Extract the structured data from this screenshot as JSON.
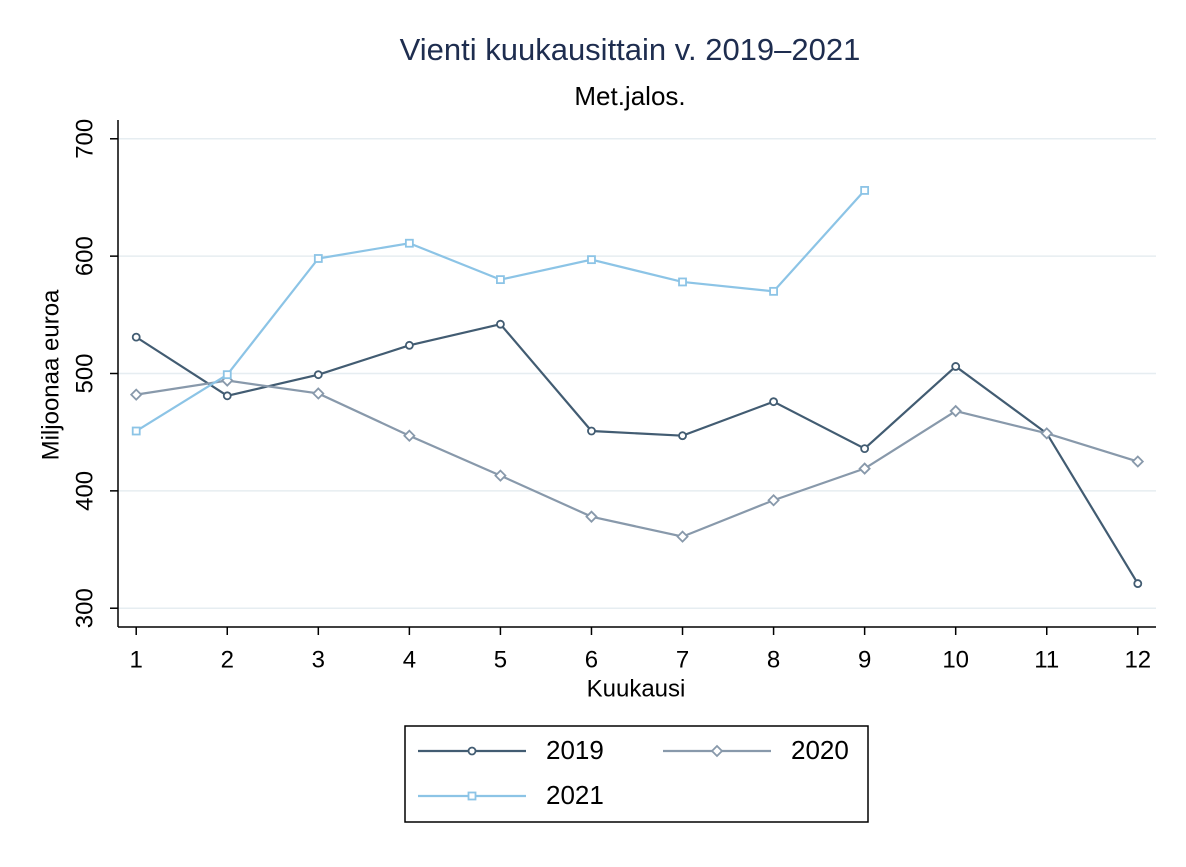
{
  "chart_data": {
    "type": "line",
    "title": "Vienti kuukausittain v. 2019–2021",
    "subtitle": "Met.jalos.",
    "x_label": "Kuukausi",
    "y_label": "Miljoonaa euroa",
    "x": [
      1,
      2,
      3,
      4,
      5,
      6,
      7,
      8,
      9,
      10,
      11,
      12
    ],
    "xlim": [
      0.8,
      12.2
    ],
    "xticks": [
      1,
      2,
      3,
      4,
      5,
      6,
      7,
      8,
      9,
      10,
      11,
      12
    ],
    "ylim": [
      284,
      716
    ],
    "yticks": [
      300,
      400,
      500,
      600,
      700
    ],
    "grid": true,
    "series": [
      {
        "name": "2019",
        "color": "#425c72",
        "marker": "circle",
        "values": [
          531,
          481,
          499,
          524,
          542,
          451,
          447,
          476,
          436,
          506,
          449,
          321
        ]
      },
      {
        "name": "2020",
        "color": "#8899ab",
        "marker": "diamond",
        "values": [
          482,
          494,
          483,
          447,
          413,
          378,
          361,
          392,
          419,
          468,
          449,
          425
        ]
      },
      {
        "name": "2021",
        "color": "#8cc4e6",
        "marker": "square",
        "values": [
          451,
          499,
          598,
          611,
          580,
          597,
          578,
          570,
          656,
          null,
          null,
          null
        ]
      }
    ]
  }
}
